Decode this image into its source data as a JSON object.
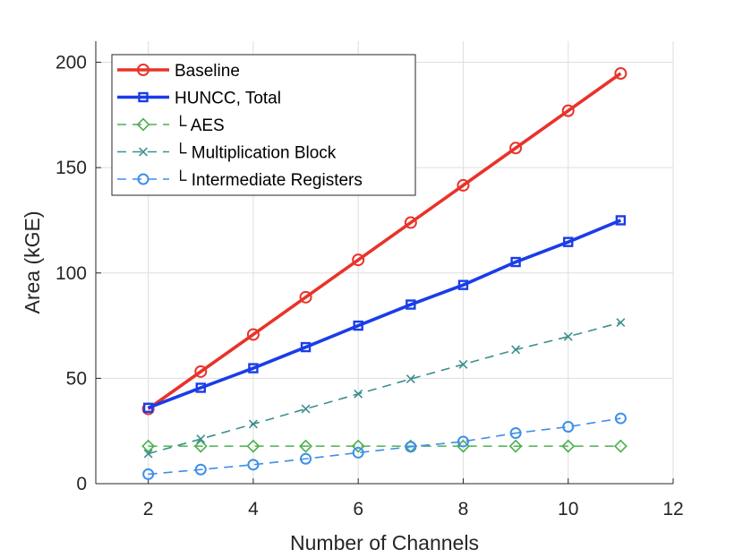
{
  "chart_data": {
    "type": "line",
    "xlabel": "Number of Channels",
    "ylabel": "Area (kGE)",
    "xlim": [
      1,
      12
    ],
    "ylim": [
      0,
      210
    ],
    "xticks": [
      "2",
      "4",
      "6",
      "8",
      "10",
      "12"
    ],
    "yticks": [
      "0",
      "50",
      "100",
      "150",
      "200"
    ],
    "xtick_values": [
      2,
      4,
      6,
      8,
      10,
      12
    ],
    "ytick_values": [
      0,
      50,
      100,
      150,
      200
    ],
    "grid": true,
    "legend_position": "top-left",
    "x": [
      2,
      3,
      4,
      5,
      6,
      7,
      8,
      9,
      10,
      11
    ],
    "series": [
      {
        "name": "Baseline",
        "color": "#e8332a",
        "style": "solid",
        "marker": "circle",
        "values": [
          35.5,
          53.2,
          70.8,
          88.5,
          106.2,
          123.9,
          141.6,
          159.3,
          177.0,
          194.7
        ]
      },
      {
        "name": "HUNCC, Total",
        "color": "#1a3de8",
        "style": "solid",
        "marker": "square",
        "values": [
          36.0,
          45.5,
          54.8,
          64.8,
          75.0,
          85.0,
          94.3,
          105.2,
          114.7,
          125.0
        ]
      },
      {
        "name": "└ AES",
        "color": "#4cb050",
        "style": "dashed",
        "marker": "diamond",
        "values": [
          17.8,
          17.8,
          17.8,
          17.8,
          17.8,
          17.8,
          17.8,
          17.8,
          17.8,
          17.8
        ]
      },
      {
        "name": "└ Multiplication Block",
        "color": "#3d8f8f",
        "style": "dashed",
        "marker": "x",
        "values": [
          14.2,
          21.2,
          28.3,
          35.5,
          42.6,
          49.7,
          56.6,
          63.6,
          69.8,
          76.5
        ]
      },
      {
        "name": "└ Intermediate Registers",
        "color": "#3d8fe8",
        "style": "dashed",
        "marker": "circle",
        "values": [
          4.5,
          6.7,
          9.0,
          11.8,
          14.7,
          17.5,
          20.0,
          24.0,
          27.0,
          31.0
        ]
      }
    ]
  }
}
